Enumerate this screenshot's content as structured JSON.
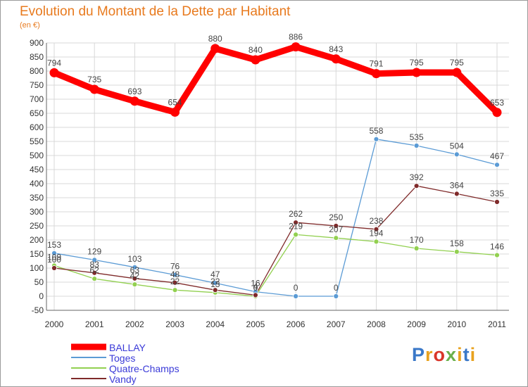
{
  "page": {
    "title": "Evolution du Montant de la Dette par Habitant",
    "subtitle": "(en €)",
    "logo": {
      "p": "P",
      "r": "r",
      "o": "o",
      "x": "x",
      "i": "i",
      "t": "t",
      "i2": "i"
    }
  },
  "chart_data": {
    "type": "line",
    "title": "Evolution du Montant de la Dette par Habitant",
    "ylabel": "(en €)",
    "xlabel": "",
    "x": [
      "2000",
      "2001",
      "2002",
      "2003",
      "2004",
      "2005",
      "2006",
      "2007",
      "2008",
      "2009",
      "2010",
      "2011"
    ],
    "ylim": [
      -50,
      900
    ],
    "yticks": [
      -50,
      0,
      50,
      100,
      150,
      200,
      250,
      300,
      350,
      400,
      450,
      500,
      550,
      600,
      650,
      700,
      750,
      800,
      850,
      900
    ],
    "grid": true,
    "legend_position": "bottom-left",
    "series": [
      {
        "name": "BALLAY",
        "color": "#ff0000",
        "values": [
          794,
          735,
          693,
          654,
          880,
          840,
          886,
          843,
          791,
          795,
          795,
          653
        ]
      },
      {
        "name": "Toges",
        "color": "#5b9bd5",
        "values": [
          153,
          129,
          103,
          76,
          47,
          16,
          0,
          0,
          558,
          535,
          504,
          467
        ]
      },
      {
        "name": "Quatre-Champs",
        "color": "#92d050",
        "values": [
          109,
          62,
          42,
          22,
          13,
          0,
          219,
          207,
          194,
          170,
          158,
          146
        ]
      },
      {
        "name": "Vandy",
        "color": "#7f2a2a",
        "values": [
          100,
          83,
          63,
          48,
          22,
          4,
          262,
          250,
          238,
          392,
          364,
          335
        ]
      }
    ]
  }
}
